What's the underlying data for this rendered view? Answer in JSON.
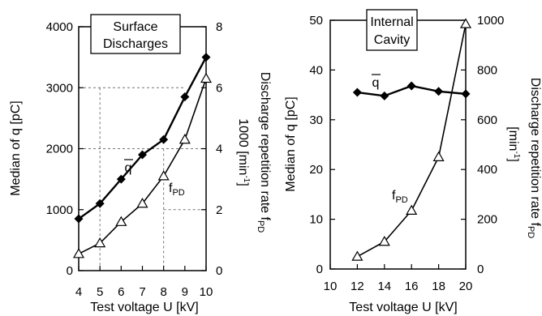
{
  "chart_data": [
    {
      "type": "line",
      "title": "Surface Discharges",
      "xlabel": "Test voltage U [kV]",
      "ylabel": "Median of q [pC]",
      "y2label": "Discharge repetition rate f",
      "y2label_sub": "PD",
      "y2label_inner": "1000 [min",
      "y2label_inner_sup": "-1",
      "y2label_inner_end": "]",
      "xlim": [
        4,
        10
      ],
      "ylim": [
        0,
        4000
      ],
      "y2lim": [
        0,
        8
      ],
      "xticks": [
        "4",
        "5",
        "6",
        "7",
        "8",
        "9",
        "10"
      ],
      "yticks": [
        "0",
        "1000",
        "2000",
        "3000",
        "4000"
      ],
      "y2ticks": [
        "0",
        "2",
        "4",
        "6",
        "8"
      ],
      "grid": "dashed reference lines",
      "series": [
        {
          "name": "q",
          "label": "q",
          "axis": "left",
          "marker": "diamond-filled",
          "x": [
            4,
            5,
            6,
            7,
            8,
            9,
            10
          ],
          "y": [
            850,
            1100,
            1500,
            1900,
            2150,
            2850,
            3500
          ]
        },
        {
          "name": "fPD",
          "label": "f",
          "label_sub": "PD",
          "axis": "right",
          "marker": "triangle-open",
          "x": [
            4,
            5,
            6,
            7,
            8,
            9,
            10
          ],
          "y": [
            0.55,
            0.9,
            1.6,
            2.2,
            3.1,
            4.3,
            6.3
          ]
        }
      ]
    },
    {
      "type": "line",
      "title": "Internal Cavity",
      "xlabel": "Test voltage U [kV]",
      "ylabel": "Median of q [pC]",
      "y2label": "Discharge repetition rate f",
      "y2label_sub": "PD",
      "y2label_inner": "[min",
      "y2label_inner_sup": "-1",
      "y2label_inner_end": "]",
      "xlim": [
        10,
        20
      ],
      "ylim": [
        0,
        50
      ],
      "y2lim": [
        0,
        1000
      ],
      "xticks": [
        "10",
        "12",
        "14",
        "16",
        "18",
        "20"
      ],
      "yticks": [
        "0",
        "10",
        "20",
        "30",
        "40",
        "50"
      ],
      "y2ticks": [
        "0",
        "200",
        "400",
        "600",
        "800",
        "1000"
      ],
      "grid": "none",
      "series": [
        {
          "name": "q",
          "label": "q",
          "axis": "left",
          "marker": "diamond-filled",
          "x": [
            12,
            14,
            16,
            18,
            20
          ],
          "y": [
            35.5,
            34.8,
            36.8,
            35.7,
            35.2
          ]
        },
        {
          "name": "fPD",
          "label": "f",
          "label_sub": "PD",
          "axis": "right",
          "marker": "triangle-open",
          "x": [
            12,
            14,
            16,
            18,
            20
          ],
          "y": [
            50,
            110,
            235,
            450,
            985
          ]
        }
      ]
    }
  ]
}
